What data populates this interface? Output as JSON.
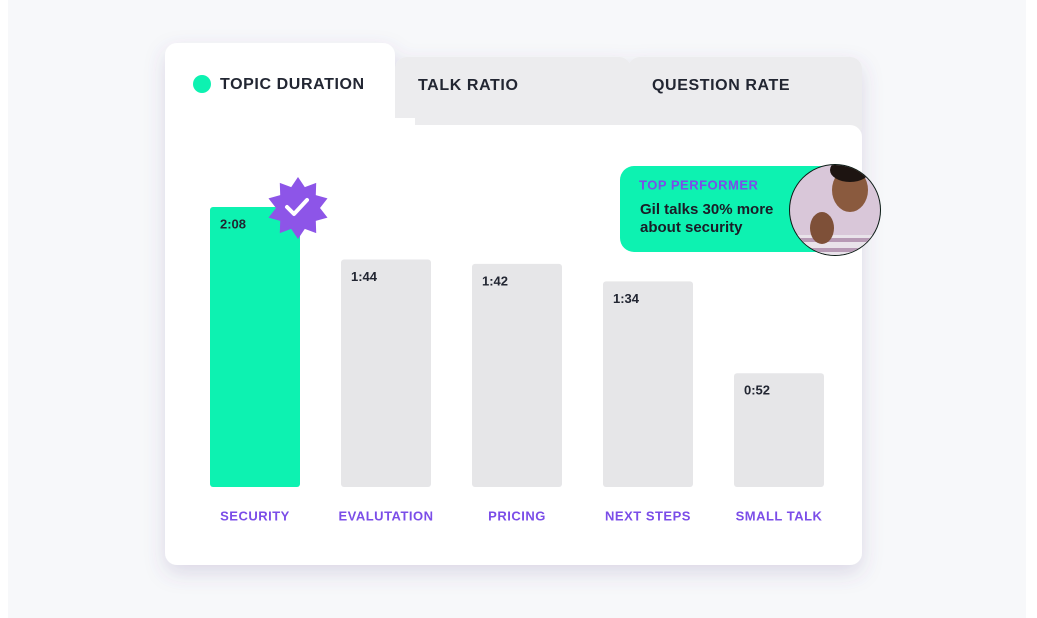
{
  "tabs": [
    {
      "label": "TOPIC DURATION"
    },
    {
      "label": "TALK RATIO"
    },
    {
      "label": "QUESTION RATE"
    }
  ],
  "callout": {
    "title": "TOP PERFORMER",
    "lines": [
      "Gil talks 30% more",
      "about security"
    ]
  },
  "chart_data": {
    "type": "bar",
    "categories": [
      "SECURITY",
      "EVALUTATION",
      "PRICING",
      "NEXT STEPS",
      "SMALL TALK"
    ],
    "values": [
      128,
      104,
      102,
      94,
      52
    ],
    "value_labels": [
      "2:08",
      "1:44",
      "1:42",
      "1:34",
      "0:52"
    ],
    "colors": [
      "#0df2b1",
      "#e6e6e8",
      "#e6e6e8",
      "#e6e6e8",
      "#e6e6e8"
    ]
  }
}
